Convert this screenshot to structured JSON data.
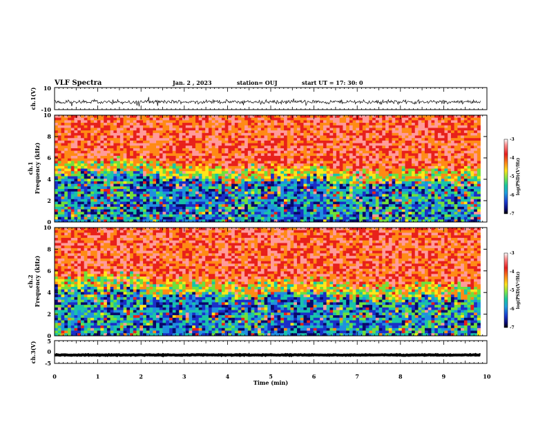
{
  "header": {
    "title": "VLF Spectra",
    "date": "Jan. 2 , 2023",
    "station": "station= OUJ",
    "start_ut": "start  UT =   17: 30: 0"
  },
  "chart_data": [
    {
      "type": "line",
      "id": "ch1-waveform",
      "ylabel": "ch.1(V)",
      "ylim": [
        -10,
        10
      ],
      "y_ticks": [
        "10",
        "-10"
      ],
      "x_range": [
        0,
        10
      ],
      "data_end": 9.85,
      "description_values": {
        "baseline": -3,
        "typical_amplitude": 1.6,
        "burst_amplitude": 5
      }
    },
    {
      "type": "heatmap",
      "id": "ch1-spectrogram",
      "ylabel_line1": "ch.1",
      "ylabel_line2": "Frequency  (kHz)",
      "y_range": [
        0,
        10
      ],
      "y_ticks": [
        "0",
        "2",
        "4",
        "6",
        "8",
        "10"
      ],
      "x_range": [
        0,
        10
      ],
      "data_end": 9.85,
      "colorbar": {
        "label": "log(PSD)(V²/Hz)",
        "range": [
          -7,
          -3
        ],
        "ticks": [
          "-3",
          "-4",
          "-5",
          "-6",
          "-7"
        ]
      },
      "bands": [
        {
          "t_start": 0.0,
          "t_end": 2.4,
          "quiet_top_khz": 4.6,
          "noise_level": 0.3
        },
        {
          "t_start": 2.4,
          "t_end": 3.8,
          "quiet_top_khz": 4.0,
          "noise_level": 0.15
        },
        {
          "t_start": 3.8,
          "t_end": 4.9,
          "quiet_top_khz": 3.8,
          "noise_level": 0.3
        },
        {
          "t_start": 4.9,
          "t_end": 6.3,
          "quiet_top_khz": 4.2,
          "noise_level": 0.12
        },
        {
          "t_start": 6.3,
          "t_end": 9.85,
          "quiet_top_khz": 3.6,
          "noise_level": 0.3
        }
      ]
    },
    {
      "type": "heatmap",
      "id": "ch2-spectrogram",
      "ylabel_line1": "ch.2",
      "ylabel_line2": "Frequency  (kHz)",
      "y_range": [
        0,
        10
      ],
      "y_ticks": [
        "0",
        "2",
        "4",
        "6",
        "8",
        "10"
      ],
      "x_range": [
        0,
        10
      ],
      "data_end": 9.85,
      "colorbar": {
        "label": "log(PSD)(V²/Hz)",
        "range": [
          -7,
          -3
        ],
        "ticks": [
          "-3",
          "-4",
          "-5",
          "-6",
          "-7"
        ]
      },
      "bands": [
        {
          "t_start": 0.0,
          "t_end": 2.3,
          "quiet_top_khz": 4.4,
          "noise_level": 0.3
        },
        {
          "t_start": 2.3,
          "t_end": 3.7,
          "quiet_top_khz": 3.8,
          "noise_level": 0.15
        },
        {
          "t_start": 3.7,
          "t_end": 4.9,
          "quiet_top_khz": 3.6,
          "noise_level": 0.3
        },
        {
          "t_start": 4.9,
          "t_end": 6.4,
          "quiet_top_khz": 3.9,
          "noise_level": 0.12
        },
        {
          "t_start": 6.4,
          "t_end": 9.85,
          "quiet_top_khz": 3.5,
          "noise_level": 0.3
        }
      ]
    },
    {
      "type": "line",
      "id": "ch3-waveform",
      "ylabel": "ch.3(V)",
      "ylim": [
        -5,
        5
      ],
      "y_ticks": [
        "5",
        "0",
        "-5"
      ],
      "x_range": [
        0,
        10
      ],
      "data_end": 9.85,
      "description_values": {
        "baseline": -1.3,
        "typical_amplitude": 0.15
      }
    }
  ],
  "x_axis": {
    "label": "Time  (min)",
    "ticks": [
      "0",
      "1",
      "2",
      "3",
      "4",
      "5",
      "6",
      "7",
      "8",
      "9",
      "10"
    ]
  }
}
